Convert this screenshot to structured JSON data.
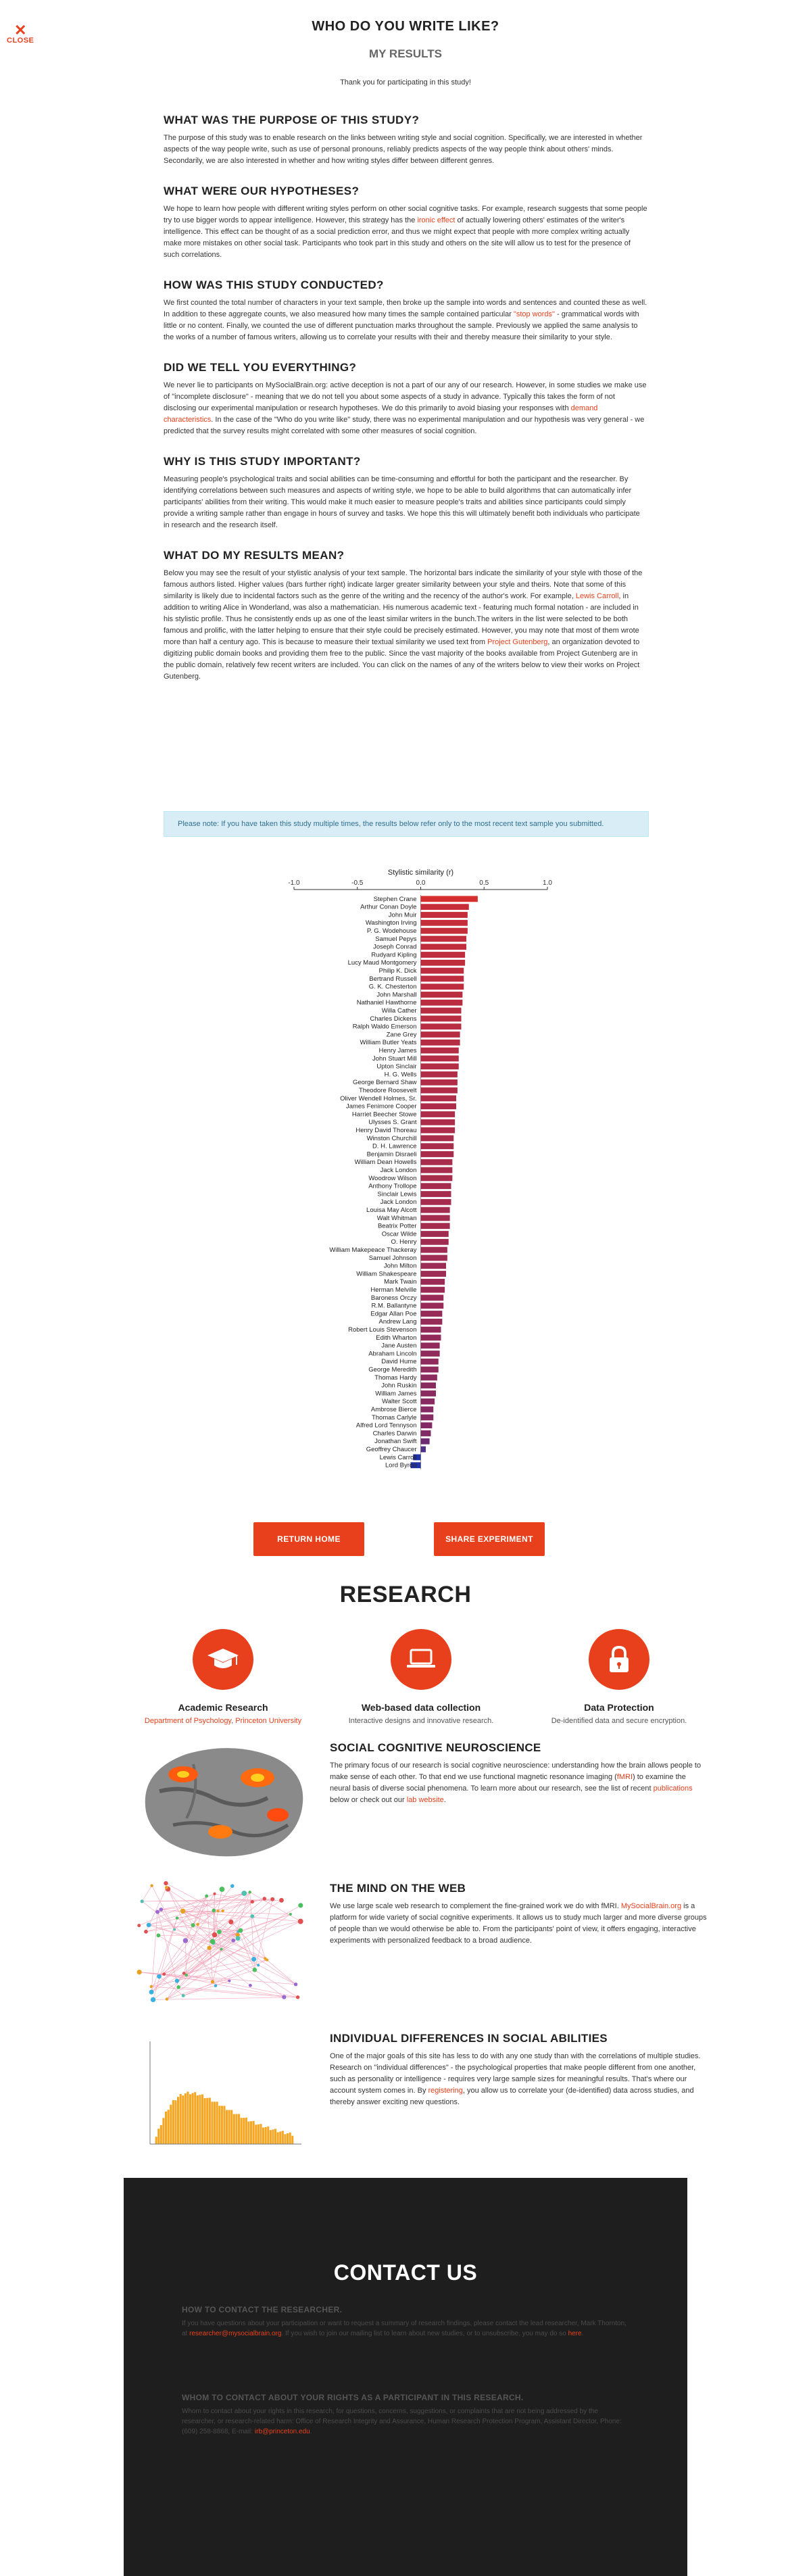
{
  "close": {
    "icon": "close-icon",
    "label": "CLOSE"
  },
  "header": {
    "title": "WHO DO YOU WRITE LIKE?",
    "subtitle": "MY RESULTS",
    "thanks": "Thank you for participating in this study!"
  },
  "sections": [
    {
      "title": "WHAT WAS THE PURPOSE OF THIS STUDY?",
      "parts": [
        "The purpose of this study was to enable research on the links between writing style and social cognition. Specifically, we are interested in whether aspects of the way people write, such as use of personal pronouns, reliably predicts aspects of the way people think about others' minds. Secondarily, we are also interested in whether and how writing styles differ between different genres."
      ]
    },
    {
      "title": "WHAT WERE OUR HYPOTHESES?",
      "parts": [
        "We hope to learn how people with different writing styles perform on other social cognitive tasks. For example, research suggests that some people try to use bigger words to appear intelligence. However, this strategy has the ",
        "ironic effect",
        " of actually lowering others' estimates of the writer's intelligence. This effect can be thought of as a social prediction error, and thus we might expect that people with more complex writing actually make more mistakes on other social task. Participants who took part in this study and others on the site will allow us to test for the presence of such correlations."
      ]
    },
    {
      "title": "HOW WAS THIS STUDY CONDUCTED?",
      "parts": [
        "We first counted the total number of characters in your text sample, then broke up the sample into words and sentences and counted these as well. In addition to these aggregate counts, we also measured how many times the sample contained particular ",
        "\"stop words\"",
        " - grammatical words with little or no content. Finally, we counted the use of different punctuation marks throughout the sample. Previously we applied the same analysis to the works of a number of famous writers, allowing us to correlate your results with their and thereby measure their similarity to your style."
      ]
    },
    {
      "title": "DID WE TELL YOU EVERYTHING?",
      "parts": [
        "We never lie to participants on MySocialBrain.org: active deception is not a part of our any of our research. However, in some studies we make use of \"incomplete disclosure\" - meaning that we do not tell you about some aspects of a study in advance. Typically this takes the form of not disclosing our experimental manipulation or research hypotheses. We do this primarily to avoid biasing your responses with ",
        "demand characteristics",
        ". In the case of the \"Who do you write like\" study, there was no experimental manipulation and our hypothesis was very general - we predicted that the survey results might correlated with some other measures of social cognition."
      ]
    },
    {
      "title": "WHY IS THIS STUDY IMPORTANT?",
      "parts": [
        "Measuring people's psychological traits and social abilities can be time-consuming and effortful for both the participant and the researcher. By identifying correlations between such measures and aspects of writing style, we hope to be able to build algorithms that can automatically infer participants' abilities from their writing. This would make it much easier to measure people's traits and abilities since participants could simply provide a writing sample rather than engage in hours of survey and tasks. We hope this this will ultimately benefit both individuals who participate in research and the research itself."
      ]
    },
    {
      "title": "WHAT DO MY RESULTS MEAN?",
      "parts": [
        "Below you may see the result of your stylistic analysis of your text sample. The horizontal bars indicate the similarity of your style with those of the famous authors listed. Higher values (bars further right) indicate larger greater similarity between your style and theirs. Note that some of this similarity is likely due to incidental factors such as the genre of the writing and the recency of the author's work. For example, ",
        "Lewis Carroll",
        ", in addition to writing Alice in Wonderland, was also a mathematician. His numerous academic text - featuring much formal notation - are included in his stylistic profile. Thus he consistently ends up as one of the least similar writers in the bunch.The writers in the list were selected to be both famous and prolific, with the latter helping to ensure that their style could be precisely estimated. However, you may note that most of them wrote more than half a century ago. This is because to measure their textual similarity we used text from ",
        "Project Gutenberg",
        ", an organization devoted to digitizing public domain books and providing them free to the public. Since the vast majority of the books available from Project Gutenberg are in the public domain, relatively few recent writers are included. You can click on the names of any of the writers below to view their works on Project Gutenberg."
      ]
    }
  ],
  "note": "Please note: If you have taken this study multiple times, the results below refer only to the most recent text sample you submitted.",
  "chart_data": {
    "type": "bar",
    "orientation": "horizontal",
    "title": "Stylistic similarity (r)",
    "xlim": [
      -1.0,
      1.0
    ],
    "xticks": [
      "-1.0",
      "-0.5",
      "0.0",
      "0.5",
      "1.0"
    ],
    "categories": [
      "Stephen Crane",
      "Arthur Conan Doyle",
      "John Muir",
      "Washington Irving",
      "P. G. Wodehouse",
      "Samuel Pepys",
      "Joseph Conrad",
      "Rudyard Kipling",
      "Lucy Maud Montgomery",
      "Philip K. Dick",
      "Bertrand Russell",
      "G. K. Chesterton",
      "John Marshall",
      "Nathaniel Hawthorne",
      "Willa Cather",
      "Charles Dickens",
      "Ralph Waldo Emerson",
      "Zane Grey",
      "William Butler Yeats",
      "Henry James",
      "John Stuart Mill",
      "Upton Sinclair",
      "H. G. Wells",
      "George Bernard Shaw",
      "Theodore Roosevelt",
      "Oliver Wendell Holmes, Sr.",
      "James Fenimore Cooper",
      "Harriet Beecher Stowe",
      "Ulysses S. Grant",
      "Henry David Thoreau",
      "Winston Churchill",
      "D. H. Lawrence",
      "Benjamin Disraeli",
      "William Dean Howells",
      "Jack London",
      "Woodrow Wilson",
      "Anthony Trollope",
      "Sinclair Lewis",
      "Jack London",
      "Louisa May Alcott",
      "Walt Whitman",
      "Beatrix Potter",
      "Oscar Wilde",
      "O. Henry",
      "William Makepeace Thackeray",
      "Samuel Johnson",
      "John Milton",
      "William Shakespeare",
      "Mark Twain",
      "Herman Melville",
      "Baroness Orczy",
      "R.M. Ballantyne",
      "Edgar Allan Poe",
      "Andrew Lang",
      "Robert Louis Stevenson",
      "Edith Wharton",
      "Jane Austen",
      "Abraham Lincoln",
      "David Hume",
      "George Meredith",
      "Thomas Hardy",
      "John Ruskin",
      "William James",
      "Walter Scott",
      "Ambrose Bierce",
      "Thomas Carlyle",
      "Alfred Lord Tennyson",
      "Charles Darwin",
      "Jonathan Swift",
      "Geoffrey Chaucer",
      "Lewis Carroll",
      "Lord Byron"
    ],
    "values": [
      0.45,
      0.38,
      0.37,
      0.37,
      0.37,
      0.36,
      0.36,
      0.35,
      0.35,
      0.34,
      0.34,
      0.34,
      0.33,
      0.33,
      0.32,
      0.32,
      0.32,
      0.31,
      0.31,
      0.3,
      0.3,
      0.3,
      0.29,
      0.29,
      0.29,
      0.28,
      0.28,
      0.27,
      0.27,
      0.27,
      0.26,
      0.26,
      0.26,
      0.25,
      0.25,
      0.25,
      0.24,
      0.24,
      0.24,
      0.23,
      0.23,
      0.23,
      0.22,
      0.22,
      0.21,
      0.21,
      0.2,
      0.2,
      0.19,
      0.19,
      0.18,
      0.18,
      0.17,
      0.17,
      0.16,
      0.16,
      0.15,
      0.15,
      0.14,
      0.14,
      0.13,
      0.12,
      0.12,
      0.11,
      0.1,
      0.1,
      0.09,
      0.08,
      0.07,
      0.04,
      -0.06,
      -0.08
    ],
    "colors": {
      "high": "#d62e2e",
      "mid": "#7a2a6a",
      "low": "#2233aa"
    }
  },
  "buttons": {
    "return_home": "RETURN HOME",
    "share": "SHARE EXPERIMENT"
  },
  "research": {
    "title": "RESEARCH",
    "features": [
      {
        "icon": "graduation-cap-icon",
        "title": "Academic Research",
        "desc_parts": [
          "Department of Psychology",
          ", ",
          "Princeton University"
        ]
      },
      {
        "icon": "laptop-icon",
        "title": "Web-based data collection",
        "desc": "Interactive designs and innovative research."
      },
      {
        "icon": "lock-icon",
        "title": "Data Protection",
        "desc": "De-identified data and secure encryption."
      }
    ],
    "sections": [
      {
        "title": "SOCIAL COGNITIVE NEUROSCIENCE",
        "parts": [
          "The primary focus of our research is social cognitive neuroscience: understanding how the brain allows people to make sense of each other. To that end we use functional magnetic resonance imaging (",
          "fMRI",
          ") to examine the neural basis of diverse social phenomena. To learn more about our research, see the list of recent ",
          "publications",
          " below or check out our ",
          "lab website",
          "."
        ]
      },
      {
        "title": "THE MIND ON THE WEB",
        "parts": [
          "We use large scale web research to complement the fine-grained work we do with fMRI. ",
          "MySocialBrain.org",
          " is a platform for wide variety of social cognitive experiments. It allows us to study much larger and more diverse groups of people than we would otherwise be able to. From the participants' point of view, it offers engaging, interactive experiments with personalized feedback to a broad audience."
        ]
      },
      {
        "title": "INDIVIDUAL DIFFERENCES IN SOCIAL ABILITIES",
        "parts": [
          "One of the major goals of this site has less to do with any one study than with the correlations of multiple studies. Research on \"individual differences\" - the psychological properties that make people different from one another, such as personality or intelligence - requires very large sample sizes for meaningful results. That's where our account system comes in. By ",
          "registering",
          ", you allow us to correlate your (de-identified) data across studies, and thereby answer exciting new questions."
        ]
      }
    ]
  },
  "contact": {
    "title": "CONTACT US",
    "blocks": [
      {
        "heading": "HOW TO CONTACT THE RESEARCHER.",
        "parts": [
          "If you have questions about your participation or want to request a summary of research findings, please contact the lead researcher, Mark Thornton, at ",
          "researcher@mysocialbrain.org",
          ". If you wish to join our mailing list to learn about new studies, or to unsubscribe, you may do so ",
          "here",
          "."
        ]
      },
      {
        "heading": "WHOM TO CONTACT ABOUT YOUR RIGHTS AS A PARTICIPANT IN THIS RESEARCH.",
        "parts": [
          "Whom to contact about your rights in this research, for questions, concerns, suggestions, or complaints that are not being addressed by the researcher, or research-related harm: Office of Research Integrity and Assurance, Human Research Protection Program, Assistant Director, Phone: (609) 258-8868, E-mail: ",
          "irb@princeton.edu",
          "."
        ]
      }
    ]
  }
}
